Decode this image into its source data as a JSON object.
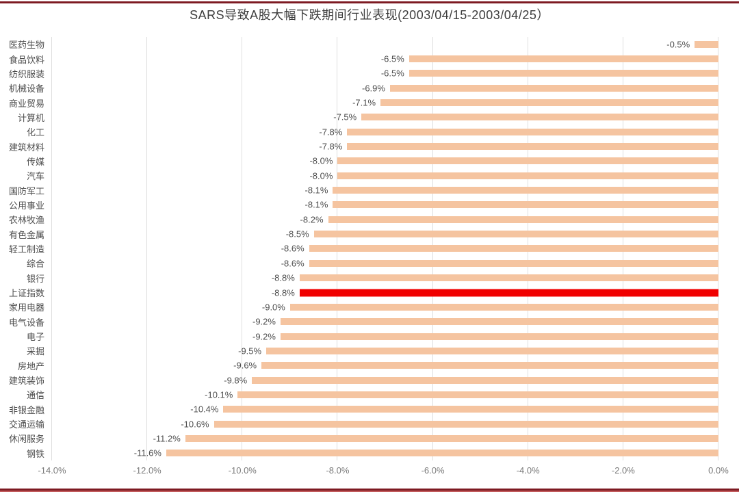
{
  "title": "SARS导致A股大幅下跌期间行业表现(2003/04/15-2003/04/25）",
  "chart_data": {
    "type": "bar",
    "orientation": "horizontal",
    "title": "SARS导致A股大幅下跌期间行业表现(2003/04/15-2003/04/25）",
    "categories": [
      "医药生物",
      "食品饮料",
      "纺织服装",
      "机械设备",
      "商业贸易",
      "计算机",
      "化工",
      "建筑材料",
      "传媒",
      "汽车",
      "国防军工",
      "公用事业",
      "农林牧渔",
      "有色金属",
      "轻工制造",
      "综合",
      "银行",
      "上证指数",
      "家用电器",
      "电气设备",
      "电子",
      "采掘",
      "房地产",
      "建筑装饰",
      "通信",
      "非银金融",
      "交通运输",
      "休闲服务",
      "钢铁"
    ],
    "values": [
      -0.5,
      -6.5,
      -6.5,
      -6.9,
      -7.1,
      -7.5,
      -7.8,
      -7.8,
      -8.0,
      -8.0,
      -8.1,
      -8.1,
      -8.2,
      -8.5,
      -8.6,
      -8.6,
      -8.8,
      -8.8,
      -9.0,
      -9.2,
      -9.2,
      -9.5,
      -9.6,
      -9.8,
      -10.1,
      -10.4,
      -10.6,
      -11.2,
      -11.6
    ],
    "bar_labels": [
      "-0.5%",
      "-6.5%",
      "-6.5%",
      "-6.9%",
      "-7.1%",
      "-7.5%",
      "-7.8%",
      "-7.8%",
      "-8.0%",
      "-8.0%",
      "-8.1%",
      "-8.1%",
      "-8.2%",
      "-8.5%",
      "-8.6%",
      "-8.6%",
      "-8.8%",
      "-8.8%",
      "-9.0%",
      "-9.2%",
      "-9.2%",
      "-9.5%",
      "-9.6%",
      "-9.8%",
      "-10.1%",
      "-10.4%",
      "-10.6%",
      "-11.2%",
      "-11.6%"
    ],
    "highlight_index": 17,
    "highlight_category": "上证指数",
    "xlabel": "",
    "ylabel": "",
    "xlim": [
      -14,
      0
    ],
    "x_ticks": [
      "-14.0%",
      "-12.0%",
      "-10.0%",
      "-8.0%",
      "-6.0%",
      "-4.0%",
      "-2.0%",
      "0.0%"
    ],
    "grid": "vertical-only",
    "legend": "none",
    "colors": {
      "bar": "#f5c4a0",
      "highlight": "#f00000",
      "gridline": "#dedede",
      "category_label": "#4d4d4d",
      "value_label": "#4d4d4d",
      "tick_label": "#7a7a7a",
      "title": "#3d3d3d",
      "frame_rule": "#7d1a22",
      "frame_rule_light": "#c25a5c"
    }
  }
}
